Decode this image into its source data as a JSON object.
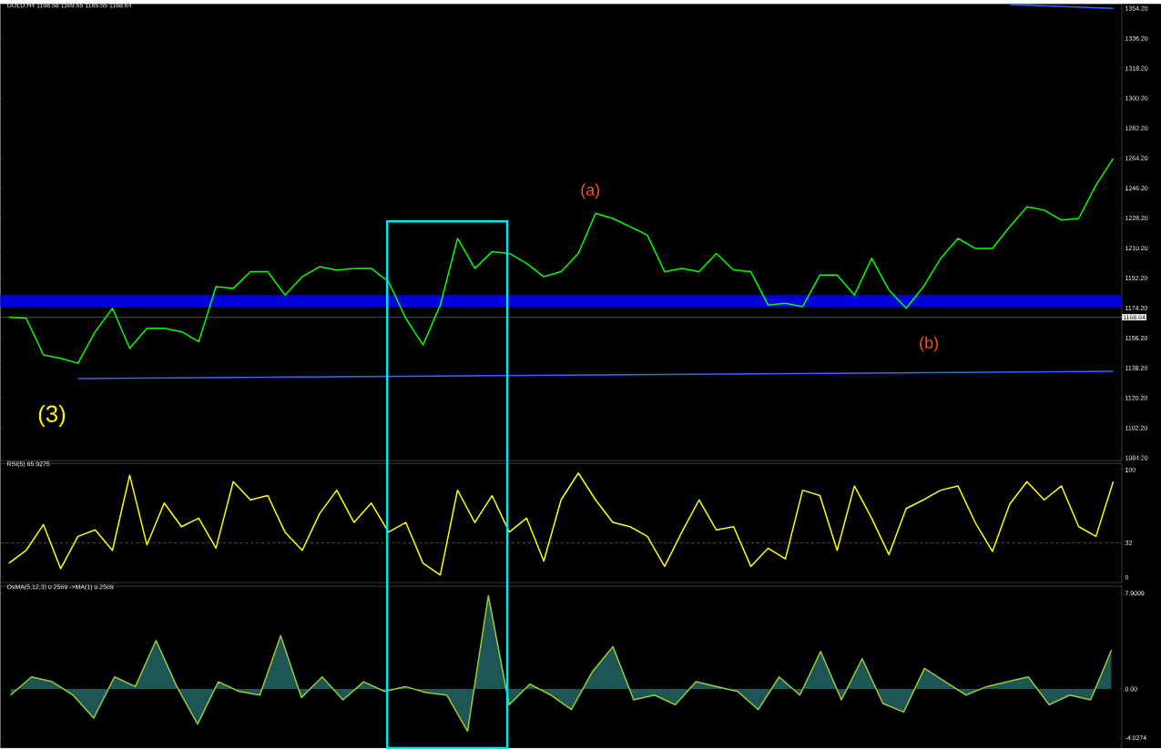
{
  "chart_data": [
    {
      "type": "line",
      "title": "GOLD,H4 1168.58 1169.55 1165.55 1168.64",
      "tick_labels": "y",
      "ylim": [
        1082.5,
        1356.9
      ],
      "categories": [
        null,
        null,
        null,
        null,
        null,
        null,
        null,
        null,
        null,
        null,
        null,
        null,
        null,
        null,
        null,
        null,
        null,
        null,
        null,
        null,
        null,
        null,
        null,
        null,
        null,
        null,
        null,
        null,
        null,
        null,
        null,
        null,
        null,
        null,
        null,
        null,
        null,
        null,
        null,
        null,
        null,
        null,
        null,
        null,
        null,
        null,
        null,
        null,
        null,
        null,
        null,
        null,
        null,
        null,
        null,
        null,
        null,
        null,
        null,
        null,
        null,
        null,
        null,
        null,
        null
      ],
      "yticks": [
        {
          "value": 1084.2,
          "label": "1084.20"
        },
        {
          "value": 1102.2,
          "label": "1102.20"
        },
        {
          "value": 1120.2,
          "label": "1120.20"
        },
        {
          "value": 1138.2,
          "label": "1138.20"
        },
        {
          "value": 1156.2,
          "label": "1156.20"
        },
        {
          "value": 1174.2,
          "label": "1174.20"
        },
        {
          "value": 1192.2,
          "label": "1192.20"
        },
        {
          "value": 1210.2,
          "label": "1210.20"
        },
        {
          "value": 1228.2,
          "label": "1228.20"
        },
        {
          "value": 1246.2,
          "label": "1246.20"
        },
        {
          "value": 1264.2,
          "label": "1264.20"
        },
        {
          "value": 1282.2,
          "label": "1282.20"
        },
        {
          "value": 1300.2,
          "label": "1300.20"
        },
        {
          "value": 1318.2,
          "label": "1318.20"
        },
        {
          "value": 1336.2,
          "label": "1336.20"
        },
        {
          "value": 1354.2,
          "label": "1354.20"
        }
      ],
      "series": [
        {
          "color": "#00ff00",
          "values": [
            1168.7,
            1168,
            1146,
            1144,
            1141,
            1160,
            1174,
            1150,
            1162,
            1162,
            1160,
            1154,
            1187,
            1186,
            1196,
            1196,
            1182,
            1193,
            1199,
            1197,
            1198,
            1198,
            1190,
            1168,
            1152,
            1176,
            1216,
            1198,
            1208,
            1207,
            1201,
            1193,
            1196,
            1207,
            1231,
            1228,
            1223,
            1218,
            1196,
            1198,
            1196,
            1207,
            1197,
            1196,
            1176,
            1177,
            1175,
            1194,
            1194,
            1182,
            1204,
            1185,
            1174,
            1187,
            1204,
            1216,
            1210,
            1210,
            1223,
            1235,
            1233,
            1227,
            1228,
            1248,
            1264
          ]
        },
        {
          "color": "#3366ff",
          "values": [
            null,
            null,
            null,
            null,
            1131.8,
            null,
            null,
            null,
            null,
            null,
            null,
            null,
            null,
            null,
            null,
            null,
            null,
            null,
            null,
            null,
            null,
            null,
            null,
            null,
            null,
            null,
            null,
            null,
            null,
            null,
            null,
            null,
            null,
            null,
            null,
            null,
            null,
            null,
            null,
            null,
            null,
            null,
            null,
            null,
            null,
            null,
            null,
            null,
            null,
            null,
            null,
            null,
            null,
            null,
            null,
            null,
            null,
            null,
            null,
            null,
            null,
            null,
            null,
            null,
            1136.1
          ]
        },
        {
          "color": "#3366ff",
          "values": [
            null,
            null,
            null,
            null,
            null,
            null,
            null,
            null,
            null,
            null,
            null,
            null,
            null,
            null,
            null,
            null,
            null,
            null,
            null,
            null,
            null,
            null,
            null,
            null,
            null,
            null,
            null,
            null,
            null,
            null,
            null,
            null,
            null,
            null,
            null,
            null,
            null,
            null,
            null,
            null,
            null,
            null,
            null,
            null,
            null,
            null,
            null,
            null,
            null,
            null,
            null,
            null,
            null,
            null,
            null,
            null,
            null,
            null,
            1356.5,
            null,
            null,
            null,
            null,
            null,
            1354.2
          ]
        }
      ],
      "ref_lines": [
        {
          "axis": "y",
          "value": 1168.64,
          "label": "1168.64",
          "color": "#808080"
        }
      ],
      "bands": [
        {
          "axis": "y",
          "from": 1175,
          "to": 1182,
          "color": "#0000dd"
        }
      ],
      "annotations": [
        "(a)",
        "(b)",
        "(3)"
      ]
    },
    {
      "type": "line",
      "title": "RSI(5) 65.9275",
      "tick_labels": "y",
      "ylim": [
        -5,
        106
      ],
      "yticks": [
        0,
        32,
        100
      ],
      "categories": [
        null,
        null,
        null,
        null,
        null,
        null,
        null,
        null,
        null,
        null,
        null,
        null,
        null,
        null,
        null,
        null,
        null,
        null,
        null,
        null,
        null,
        null,
        null,
        null,
        null,
        null,
        null,
        null,
        null,
        null,
        null,
        null,
        null,
        null,
        null,
        null,
        null,
        null,
        null,
        null,
        null,
        null,
        null,
        null,
        null,
        null,
        null,
        null,
        null,
        null,
        null,
        null,
        null,
        null,
        null,
        null,
        null,
        null,
        null,
        null,
        null,
        null,
        null,
        null,
        null
      ],
      "series": [
        {
          "color": "#ffff00",
          "values": [
            13,
            25,
            49,
            8,
            38,
            44,
            25,
            95,
            30,
            69,
            47,
            55,
            27,
            89,
            72,
            76,
            42,
            25,
            59,
            81,
            51,
            69,
            42,
            51,
            13,
            2,
            81,
            51,
            76,
            42,
            55,
            15,
            72,
            97,
            72,
            51,
            47,
            38,
            10,
            42,
            72,
            44,
            47,
            10,
            27,
            17,
            81,
            76,
            25,
            85,
            55,
            21,
            64,
            72,
            81,
            85,
            51,
            24,
            68,
            89,
            72,
            85,
            47,
            38,
            89
          ]
        }
      ],
      "ref_lines": [
        {
          "axis": "y",
          "value": 32,
          "line_style": "dashed",
          "color": "#808080"
        }
      ]
    },
    {
      "type": "area",
      "title": "OsMA(5,12,3) 0.2569  ->MA(1) 0.2569",
      "tick_labels": "y",
      "ylim": [
        -4.88,
        8.48
      ],
      "yticks": [
        -4.0274,
        {
          "value": 0,
          "label": "0.00"
        },
        7.9009
      ],
      "categories": [
        null,
        null,
        null,
        null,
        null,
        null,
        null,
        null,
        null,
        null,
        null,
        null,
        null,
        null,
        null,
        null,
        null,
        null,
        null,
        null,
        null,
        null,
        null,
        null,
        null,
        null,
        null,
        null,
        null,
        null,
        null,
        null,
        null,
        null,
        null,
        null,
        null,
        null,
        null,
        null,
        null,
        null,
        null,
        null,
        null,
        null,
        null,
        null,
        null,
        null,
        null,
        null,
        null,
        null
      ],
      "series": [
        {
          "color": "#1e5555",
          "values": [
            -0.5,
            1,
            0.6,
            -0.5,
            -2.4,
            1,
            0.2,
            4,
            0.2,
            -2.9,
            0.6,
            -0.2,
            -0.5,
            4.4,
            -0.7,
            1,
            -0.9,
            0.6,
            -0.2,
            0.2,
            -0.3,
            -0.5,
            -3.5,
            7.7,
            -1.3,
            0.4,
            -0.5,
            -1.7,
            1.4,
            3.5,
            -0.9,
            -0.5,
            -1.3,
            0.6,
            0.2,
            -0.2,
            -1.7,
            1,
            -0.5,
            3.1,
            -0.9,
            2.5,
            -1.2,
            -1.9,
            1.7,
            0.6,
            -0.5,
            0.2,
            0.6,
            1,
            -1.3,
            -0.5,
            -0.9,
            3.2
          ]
        }
      ]
    }
  ]
}
